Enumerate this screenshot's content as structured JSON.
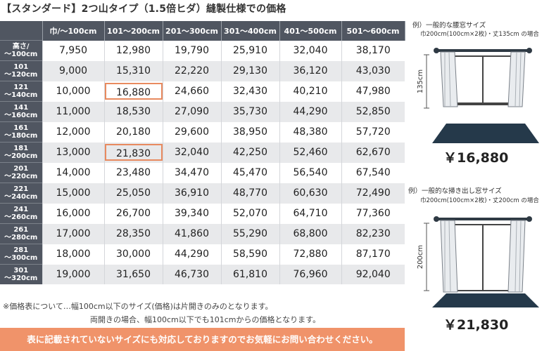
{
  "title": "【スタンダード】2つ山タイプ（1.5倍ヒダ）縫製仕様での価格",
  "table": {
    "corner": "",
    "columns": [
      "巾/〜100cm",
      "101〜200cm",
      "201〜300cm",
      "301〜400cm",
      "401〜500cm",
      "501〜600cm"
    ],
    "rows": [
      {
        "h1": "高さ/",
        "h2": "〜100cm",
        "values": [
          "7,950",
          "12,980",
          "19,790",
          "25,910",
          "32,040",
          "38,170"
        ]
      },
      {
        "h1": "101",
        "h2": "〜120cm",
        "values": [
          "9,000",
          "15,310",
          "22,220",
          "29,130",
          "36,120",
          "43,030"
        ]
      },
      {
        "h1": "121",
        "h2": "〜140cm",
        "values": [
          "10,000",
          "16,880",
          "24,660",
          "32,430",
          "40,210",
          "47,980"
        ]
      },
      {
        "h1": "141",
        "h2": "〜160cm",
        "values": [
          "11,000",
          "18,530",
          "27,090",
          "35,730",
          "44,290",
          "52,850"
        ]
      },
      {
        "h1": "161",
        "h2": "〜180cm",
        "values": [
          "12,000",
          "20,180",
          "29,600",
          "38,950",
          "48,380",
          "57,720"
        ]
      },
      {
        "h1": "181",
        "h2": "〜200cm",
        "values": [
          "13,000",
          "21,830",
          "32,040",
          "42,250",
          "52,460",
          "62,670"
        ]
      },
      {
        "h1": "201",
        "h2": "〜220cm",
        "values": [
          "14,000",
          "23,480",
          "34,470",
          "45,470",
          "56,540",
          "67,540"
        ]
      },
      {
        "h1": "221",
        "h2": "〜240cm",
        "values": [
          "15,000",
          "25,050",
          "36,910",
          "48,770",
          "60,630",
          "72,490"
        ]
      },
      {
        "h1": "241",
        "h2": "〜260cm",
        "values": [
          "16,000",
          "26,700",
          "39,340",
          "52,070",
          "64,710",
          "77,360"
        ]
      },
      {
        "h1": "261",
        "h2": "〜280cm",
        "values": [
          "17,000",
          "28,350",
          "41,860",
          "55,290",
          "68,800",
          "82,230"
        ]
      },
      {
        "h1": "281",
        "h2": "〜300cm",
        "values": [
          "18,000",
          "30,000",
          "44,290",
          "58,590",
          "72,880",
          "87,170"
        ]
      },
      {
        "h1": "301",
        "h2": "〜320cm",
        "values": [
          "19,000",
          "31,650",
          "46,730",
          "61,810",
          "76,960",
          "92,040"
        ]
      }
    ]
  },
  "notes": {
    "line1": "※価格表について…幅100cm以下のサイズ(価格)は片開きのみのとなります。",
    "line2": "両開きの場合、幅100cm以下でも101cmからの価格となります。"
  },
  "banner": "表に記載されていないサイズにも対応しておりますのでお気軽にお問い合わせください。",
  "examples": {
    "waist": {
      "title": "例）一般的な腰窓サイズ",
      "subtitle": "巾200cm(100cm×2枚)・丈135cm の場合",
      "dim": "135cm",
      "price": "￥16,880"
    },
    "sweep": {
      "title": "例）一般的な掃き出し窓サイズ",
      "subtitle": "巾200cm(100cm×2枚)・丈200cm の場合",
      "dim": "200cm",
      "price": "￥21,830"
    }
  },
  "colors": {
    "header_bg": "#505661",
    "row_alt": "#e8e9eb",
    "highlight": "#e88a5f",
    "banner": "#f0936a",
    "rug": "#25394a"
  }
}
